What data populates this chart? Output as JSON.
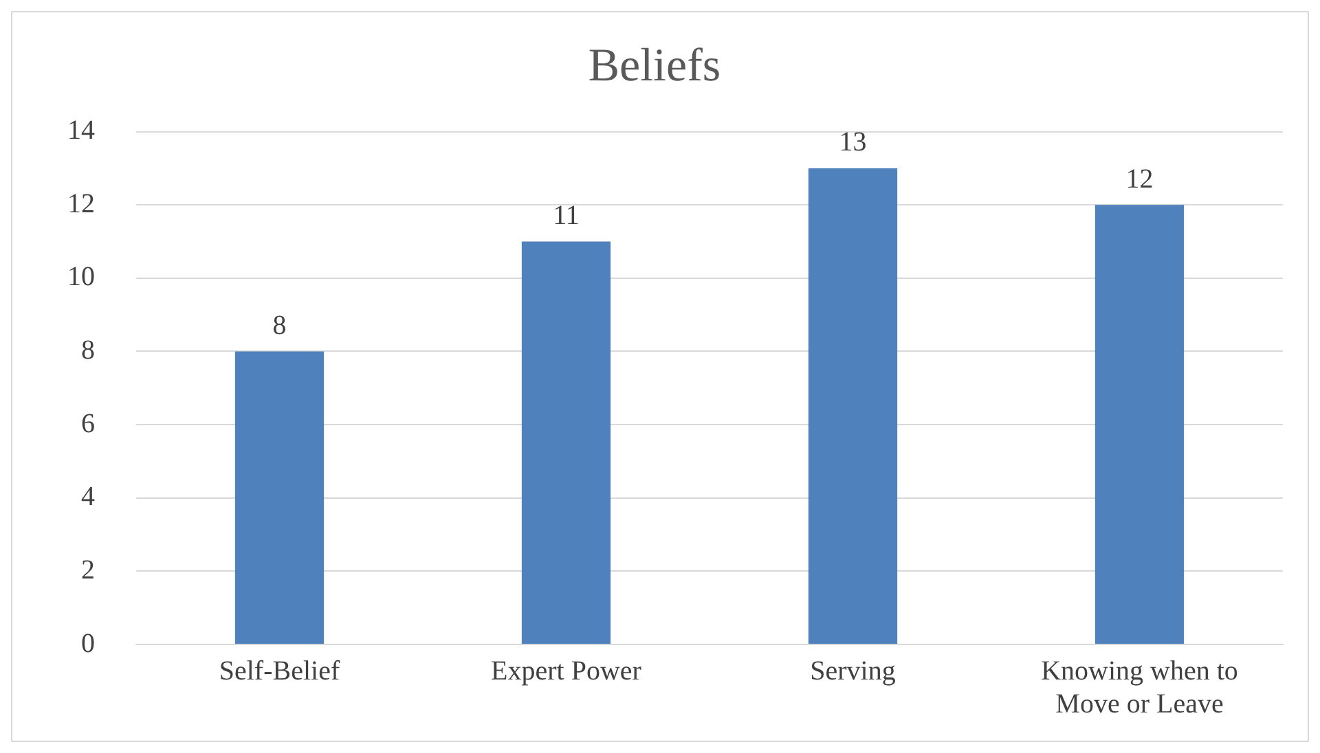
{
  "chart_data": {
    "type": "bar",
    "title": "Beliefs",
    "categories": [
      "Self-Belief",
      "Expert Power",
      "Serving",
      "Knowing when to Move or Leave"
    ],
    "values": [
      8,
      11,
      13,
      12
    ],
    "color": "#4f81bd",
    "ylim": [
      0,
      14
    ],
    "yticks": [
      0,
      2,
      4,
      6,
      8,
      10,
      12,
      14
    ],
    "grid": "y",
    "data_labels": true,
    "legend": false
  }
}
